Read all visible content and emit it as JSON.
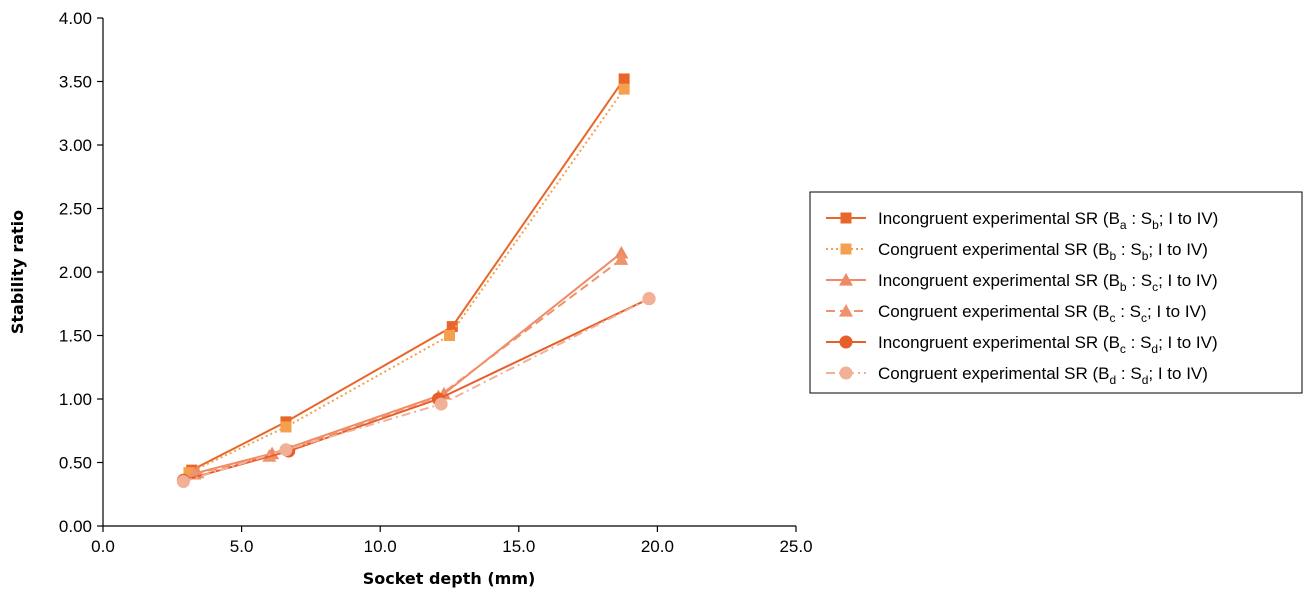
{
  "chart_data": {
    "type": "line",
    "title": "",
    "xlabel": "Socket depth (mm)",
    "ylabel": "Stability ratio",
    "xlim": [
      0,
      25
    ],
    "ylim": [
      0,
      4
    ],
    "xticks": [
      "0.0",
      "5.0",
      "10.0",
      "15.0",
      "20.0",
      "25.0"
    ],
    "yticks": [
      "0.00",
      "0.50",
      "1.00",
      "1.50",
      "2.00",
      "2.50",
      "3.00",
      "3.50",
      "4.00"
    ],
    "grid": false,
    "legend_position": "right",
    "series": [
      {
        "name": "Incongruent experimental SR (Ba : Sb; I to IV)",
        "label_parts": [
          "Incongruent experimental SR (B",
          "a",
          " : S",
          "b",
          "; I to IV)"
        ],
        "marker": "square",
        "line": "solid",
        "color": "#E8662A",
        "points": [
          [
            3.2,
            0.44
          ],
          [
            6.6,
            0.82
          ],
          [
            12.6,
            1.57
          ],
          [
            18.8,
            3.52
          ]
        ]
      },
      {
        "name": "Congruent experimental SR (Bb : Sb; I to IV)",
        "label_parts": [
          "Congruent experimental SR (B",
          "b",
          " : S",
          "b",
          "; I to IV)"
        ],
        "marker": "square",
        "line": "dotted",
        "color": "#F4A04E",
        "points": [
          [
            3.1,
            0.42
          ],
          [
            6.6,
            0.78
          ],
          [
            12.5,
            1.5
          ],
          [
            18.8,
            3.44
          ]
        ]
      },
      {
        "name": "Incongruent experimental SR (Bb : Sc; I to IV)",
        "label_parts": [
          "Incongruent experimental SR (B",
          "b",
          " : S",
          "c",
          "; I to IV)"
        ],
        "marker": "triangle",
        "line": "solid",
        "color": "#EE8A65",
        "points": [
          [
            3.4,
            0.42
          ],
          [
            6.1,
            0.57
          ],
          [
            12.3,
            1.04
          ],
          [
            18.7,
            2.15
          ]
        ]
      },
      {
        "name": "Congruent experimental SR (Bc : Sc; I to IV)",
        "label_parts": [
          "Congruent experimental SR (B",
          "c",
          " : S",
          "c",
          "; I to IV)"
        ],
        "marker": "triangle",
        "line": "dashed",
        "color": "#F0926A",
        "points": [
          [
            3.3,
            0.41
          ],
          [
            6.0,
            0.55
          ],
          [
            12.1,
            1.02
          ],
          [
            18.7,
            2.1
          ]
        ]
      },
      {
        "name": "Incongruent experimental SR (Bc : Sd; I to IV)",
        "label_parts": [
          "Incongruent experimental SR (B",
          "c",
          " : S",
          "d",
          "; I to IV)"
        ],
        "marker": "circle",
        "line": "solid",
        "color": "#E85E2B",
        "points": [
          [
            2.9,
            0.36
          ],
          [
            6.7,
            0.59
          ],
          [
            12.1,
            1.0
          ],
          [
            19.7,
            1.79
          ]
        ]
      },
      {
        "name": "Congruent experimental SR (Bd : Sd; I to IV)",
        "label_parts": [
          "Congruent experimental SR (B",
          "d",
          " : S",
          "d",
          "; I to IV)"
        ],
        "marker": "circle",
        "line": "dashdot",
        "color": "#F2B096",
        "points": [
          [
            2.9,
            0.35
          ],
          [
            6.6,
            0.6
          ],
          [
            12.2,
            0.96
          ],
          [
            19.7,
            1.79
          ]
        ]
      }
    ]
  }
}
